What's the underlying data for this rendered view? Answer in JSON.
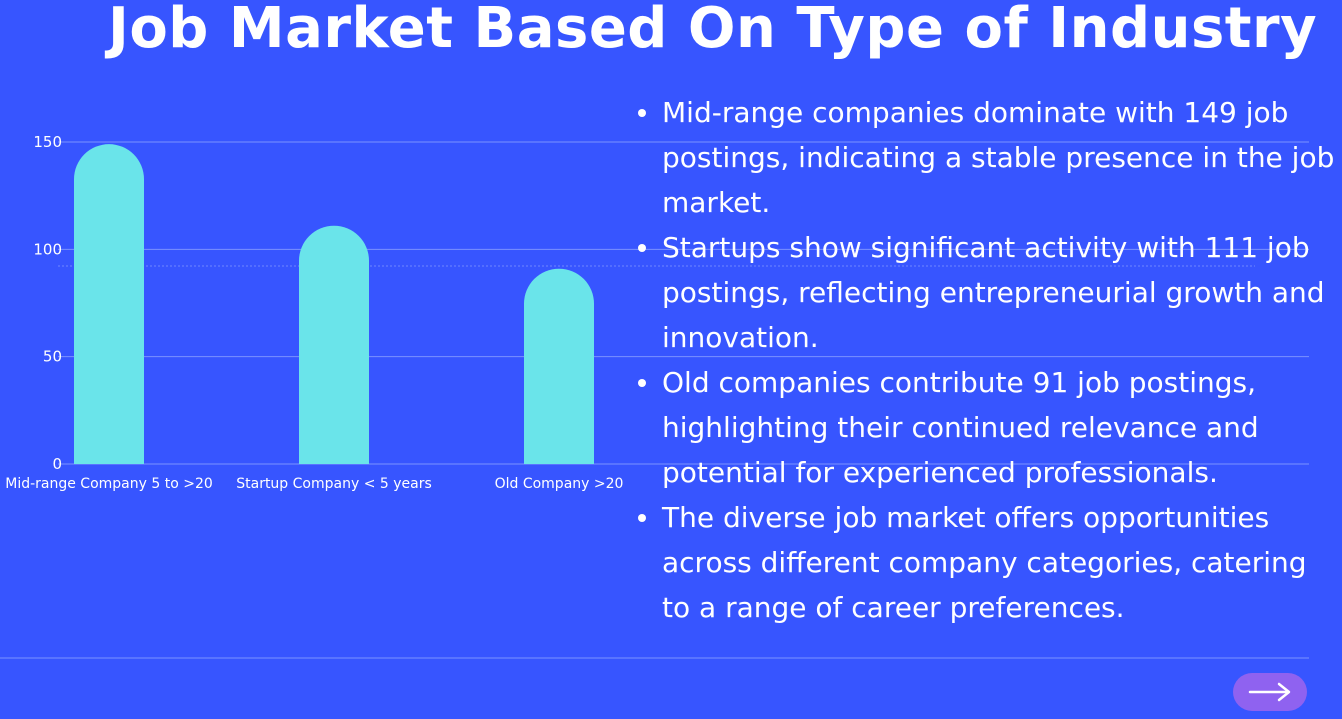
{
  "title": "Job Market Based On Type of Industry",
  "chart_data": {
    "type": "bar",
    "categories": [
      "Mid-range Company 5 to >20",
      "Startup Company < 5 years",
      "Old Company >20"
    ],
    "values": [
      149,
      111,
      91
    ],
    "yticks": [
      "0",
      "50",
      "100",
      "150"
    ],
    "ylim": [
      0,
      150
    ],
    "grid": true,
    "bar_color": "#6AE4EA"
  },
  "bullets": [
    "Mid-range companies dominate with 149 job postings, indicating a stable presence in the job market.",
    "Startups show significant activity with 111 job postings, reflecting entrepreneurial growth and innovation.",
    "Old companies contribute 91 job postings, highlighting their continued relevance and potential for experienced professionals.",
    "The diverse job market offers opportunities across different company categories, catering to a range of career preferences."
  ],
  "nav": {
    "icon": "arrow-right-icon"
  },
  "colors": {
    "background": "#3755FF",
    "accent": "#8F62F0",
    "text": "#FFFFFF"
  }
}
